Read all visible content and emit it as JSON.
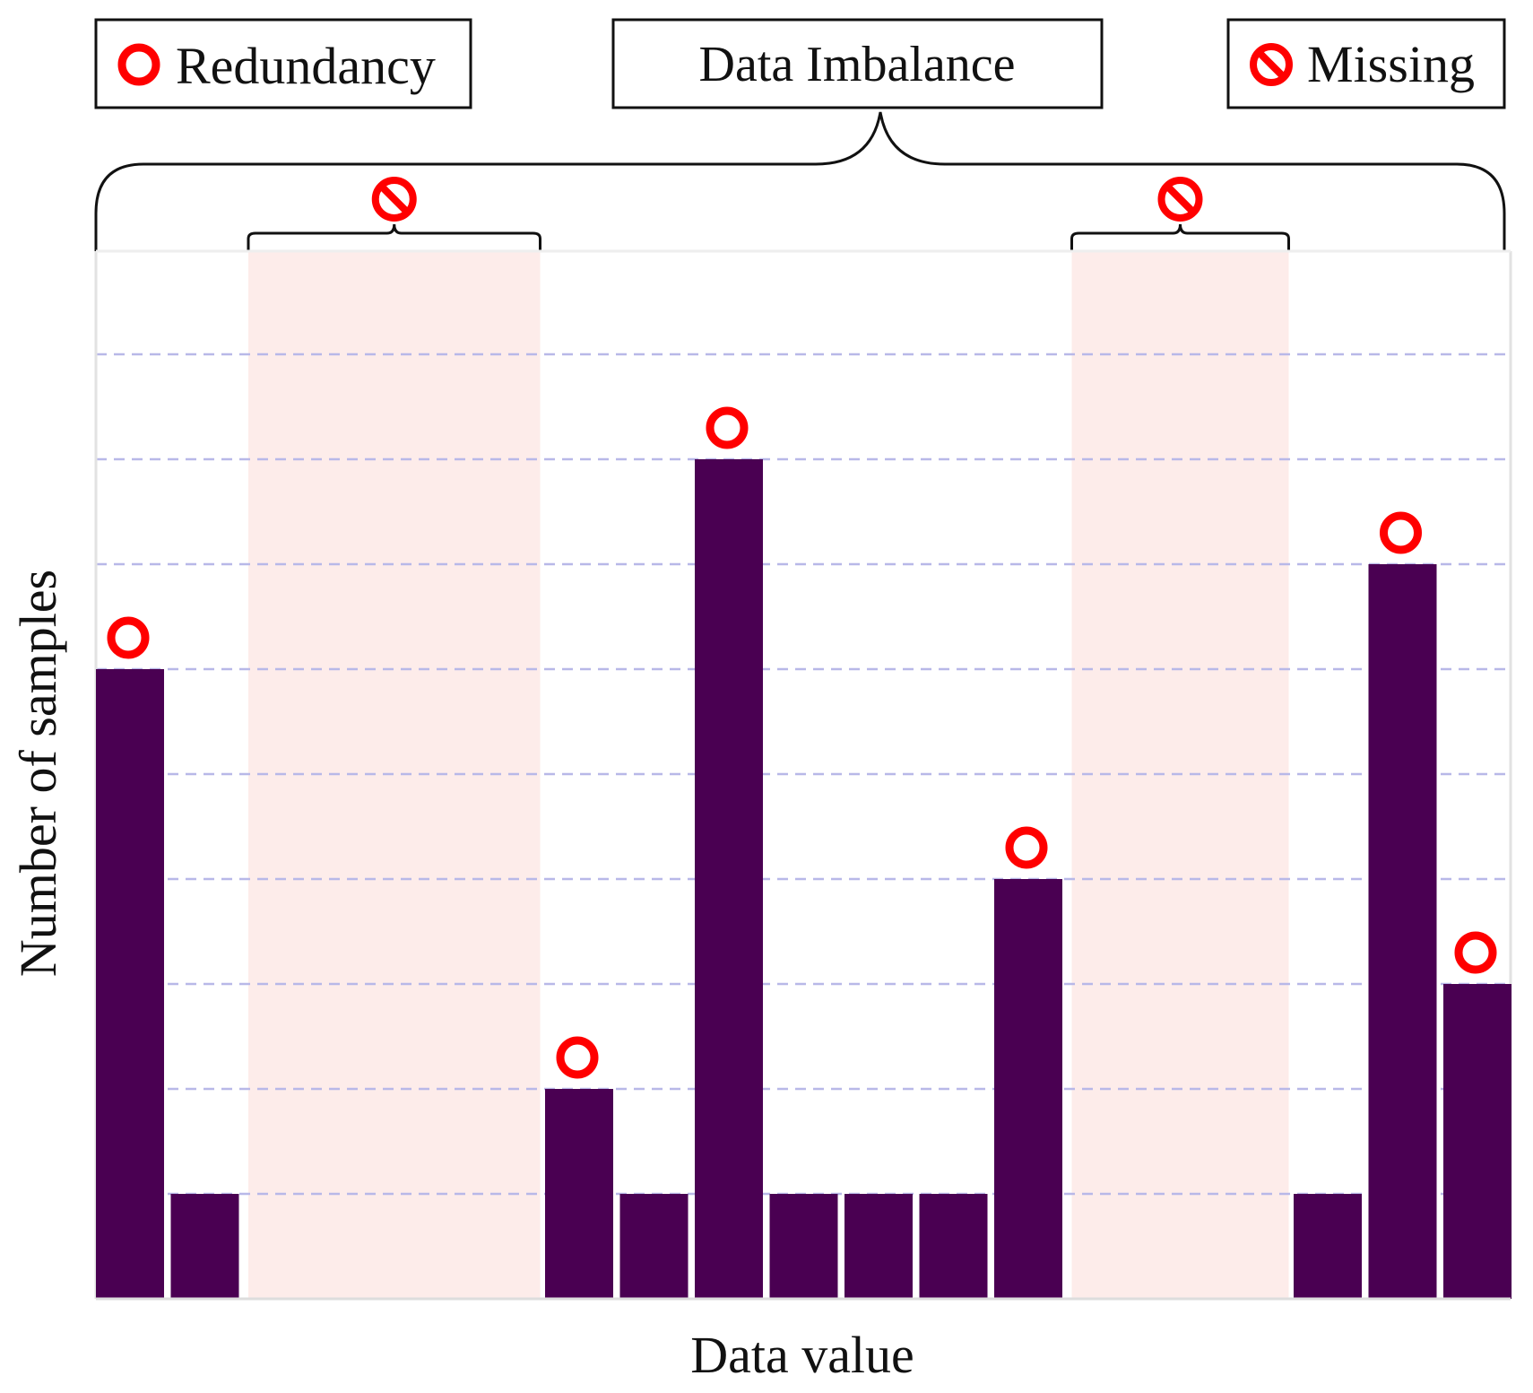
{
  "chart_data": {
    "type": "bar",
    "xlabel": "Data value",
    "ylabel": "Number of samples",
    "ylim": [
      0,
      10
    ],
    "grid": true,
    "slot_values": [
      6,
      1,
      null,
      null,
      null,
      null,
      2,
      1,
      8,
      1,
      1,
      1,
      4,
      null,
      null,
      null,
      1,
      7,
      3
    ],
    "redundant_slots": [
      0,
      6,
      8,
      12,
      17,
      18
    ],
    "missing_ranges": [
      [
        2,
        5
      ],
      [
        13,
        15
      ]
    ],
    "group_label": "Data Imbalance",
    "legend": {
      "redundancy_label": "Redundancy",
      "missing_label": "Missing"
    },
    "colors": {
      "bar": "#4a0052",
      "redundancy_marker": "#ff0000",
      "missing_marker": "#ff0000",
      "missing_band": "#fdecea",
      "grid": "#b8b8e8"
    },
    "icons": {
      "redundancy": "ring-icon",
      "missing": "prohibited-icon"
    }
  }
}
